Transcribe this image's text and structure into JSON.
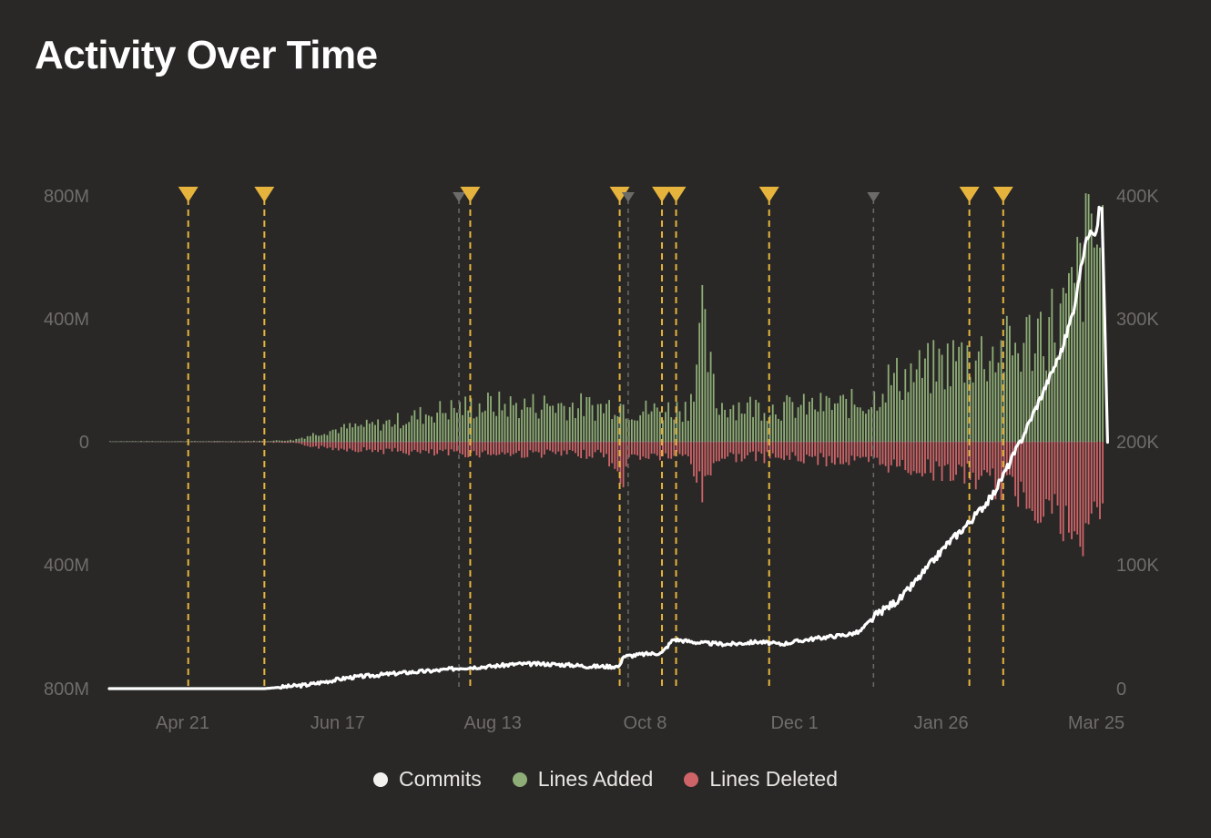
{
  "chart_data": {
    "type": "bar",
    "title": "Activity Over Time",
    "x_ticks": [
      "Apr 21",
      "Jun 17",
      "Aug 13",
      "Oct 8",
      "Dec 1",
      "Jan 26",
      "Mar 25"
    ],
    "left_axis_ticks": [
      "800M",
      "400M",
      "0",
      "400M",
      "800M"
    ],
    "right_axis_ticks": [
      "400K",
      "300K",
      "200K",
      "100K",
      "0"
    ],
    "left_ylim": [
      -800,
      800
    ],
    "left_unit": "M lines (added up, deleted down)",
    "right_ylim": [
      0,
      400
    ],
    "right_unit": "K commits",
    "x_range_days": [
      0,
      350
    ],
    "tick_days": [
      26,
      81,
      136,
      190,
      243,
      295,
      350
    ],
    "series": [
      {
        "name": "Commits",
        "type": "line",
        "color": "#ffffff",
        "axis": "right",
        "points": [
          [
            0,
            0
          ],
          [
            20,
            0
          ],
          [
            40,
            0
          ],
          [
            55,
            0
          ],
          [
            60,
            1
          ],
          [
            70,
            3
          ],
          [
            75,
            5
          ],
          [
            85,
            9
          ],
          [
            95,
            11
          ],
          [
            105,
            13
          ],
          [
            118,
            15
          ],
          [
            125,
            17
          ],
          [
            135,
            18
          ],
          [
            145,
            20
          ],
          [
            155,
            20
          ],
          [
            165,
            19
          ],
          [
            170,
            18
          ],
          [
            181,
            18
          ],
          [
            182,
            26
          ],
          [
            190,
            28
          ],
          [
            196,
            29
          ],
          [
            200,
            40
          ],
          [
            210,
            37
          ],
          [
            220,
            36
          ],
          [
            230,
            38
          ],
          [
            238,
            36
          ],
          [
            243,
            38
          ],
          [
            248,
            40
          ],
          [
            255,
            42
          ],
          [
            262,
            44
          ],
          [
            266,
            46
          ],
          [
            272,
            60
          ],
          [
            281,
            74
          ],
          [
            289,
            95
          ],
          [
            297,
            117
          ],
          [
            305,
            135
          ],
          [
            313,
            156
          ],
          [
            317,
            173
          ],
          [
            323,
            200
          ],
          [
            330,
            235
          ],
          [
            338,
            276
          ],
          [
            342,
            308
          ],
          [
            346,
            360
          ],
          [
            348,
            374
          ],
          [
            350,
            368
          ],
          [
            351,
            389
          ],
          [
            352,
            390
          ],
          [
            353,
            300
          ],
          [
            354,
            200
          ]
        ]
      },
      {
        "name": "Lines Added",
        "type": "bar",
        "color": "#8fae77",
        "axis": "left",
        "points": [
          [
            0,
            2
          ],
          [
            40,
            2
          ],
          [
            55,
            3
          ],
          [
            65,
            6
          ],
          [
            75,
            35
          ],
          [
            85,
            50
          ],
          [
            95,
            60
          ],
          [
            105,
            80
          ],
          [
            115,
            105
          ],
          [
            125,
            120
          ],
          [
            135,
            130
          ],
          [
            145,
            125
          ],
          [
            155,
            130
          ],
          [
            165,
            125
          ],
          [
            175,
            120
          ],
          [
            180,
            140
          ],
          [
            185,
            110
          ],
          [
            195,
            110
          ],
          [
            205,
            120
          ],
          [
            210,
            400
          ],
          [
            215,
            130
          ],
          [
            225,
            125
          ],
          [
            235,
            120
          ],
          [
            243,
            120
          ],
          [
            250,
            125
          ],
          [
            260,
            130
          ],
          [
            270,
            140
          ],
          [
            275,
            210
          ],
          [
            282,
            230
          ],
          [
            290,
            250
          ],
          [
            295,
            270
          ],
          [
            300,
            290
          ],
          [
            305,
            300
          ],
          [
            312,
            310
          ],
          [
            318,
            320
          ],
          [
            322,
            330
          ],
          [
            326,
            360
          ],
          [
            330,
            400
          ],
          [
            335,
            420
          ],
          [
            340,
            460
          ],
          [
            344,
            600
          ],
          [
            346,
            650
          ],
          [
            348,
            730
          ],
          [
            350,
            700
          ],
          [
            352,
            700
          ],
          [
            353,
            0
          ]
        ]
      },
      {
        "name": "Lines Deleted",
        "type": "bar",
        "color": "#cf6468",
        "axis": "left",
        "points": [
          [
            0,
            0
          ],
          [
            55,
            2
          ],
          [
            65,
            5
          ],
          [
            75,
            20
          ],
          [
            85,
            25
          ],
          [
            95,
            30
          ],
          [
            105,
            35
          ],
          [
            115,
            40
          ],
          [
            125,
            40
          ],
          [
            135,
            40
          ],
          [
            145,
            42
          ],
          [
            155,
            40
          ],
          [
            165,
            45
          ],
          [
            175,
            40
          ],
          [
            181,
            140
          ],
          [
            185,
            50
          ],
          [
            195,
            50
          ],
          [
            205,
            50
          ],
          [
            210,
            170
          ],
          [
            215,
            55
          ],
          [
            225,
            50
          ],
          [
            235,
            55
          ],
          [
            243,
            55
          ],
          [
            250,
            60
          ],
          [
            260,
            65
          ],
          [
            270,
            70
          ],
          [
            280,
            85
          ],
          [
            290,
            95
          ],
          [
            300,
            110
          ],
          [
            305,
            120
          ],
          [
            312,
            140
          ],
          [
            318,
            165
          ],
          [
            322,
            170
          ],
          [
            326,
            200
          ],
          [
            330,
            210
          ],
          [
            335,
            240
          ],
          [
            338,
            290
          ],
          [
            340,
            310
          ],
          [
            342,
            400
          ],
          [
            344,
            350
          ],
          [
            346,
            300
          ],
          [
            348,
            300
          ],
          [
            350,
            240
          ],
          [
            352,
            160
          ]
        ]
      }
    ],
    "markers": [
      {
        "day": 28,
        "type": "release",
        "color": "#e6b43c"
      },
      {
        "day": 55,
        "type": "release",
        "color": "#e6b43c"
      },
      {
        "day": 124,
        "type": "minor",
        "color": "#6c6b69"
      },
      {
        "day": 128,
        "type": "release",
        "color": "#e6b43c"
      },
      {
        "day": 181,
        "type": "release",
        "color": "#e6b43c"
      },
      {
        "day": 184,
        "type": "minor",
        "color": "#6c6b69"
      },
      {
        "day": 196,
        "type": "release",
        "color": "#e6b43c"
      },
      {
        "day": 201,
        "type": "release",
        "color": "#e6b43c"
      },
      {
        "day": 234,
        "type": "release",
        "color": "#e6b43c"
      },
      {
        "day": 271,
        "type": "minor",
        "color": "#6c6b69"
      },
      {
        "day": 305,
        "type": "release",
        "color": "#e6b43c"
      },
      {
        "day": 317,
        "type": "release",
        "color": "#e6b43c"
      }
    ],
    "legend": [
      {
        "label": "Commits",
        "color": "#f4f2ef"
      },
      {
        "label": "Lines Added",
        "color": "#8fae77"
      },
      {
        "label": "Lines Deleted",
        "color": "#cf6468"
      }
    ],
    "legend_position": "bottom-center",
    "grid": false
  }
}
